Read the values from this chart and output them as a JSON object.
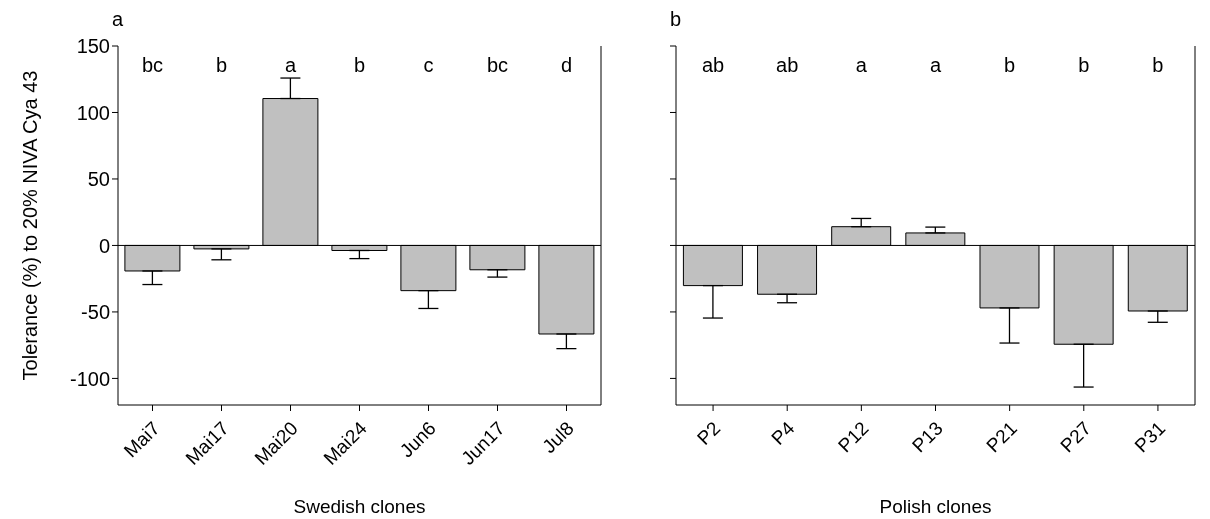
{
  "chart_data": [
    {
      "type": "bar",
      "title": "a",
      "xlabel": "Swedish clones",
      "ylabel": "Tolerance (%) to 20% NIVA Cya 43",
      "categories": [
        "Mai7",
        "Mai17",
        "Mai20",
        "Mai24",
        "Jun6",
        "Jun17",
        "Jul8"
      ],
      "values": [
        -19.2,
        -2.6,
        110.5,
        -3.8,
        -34,
        -18.3,
        -66.6
      ],
      "errors": [
        [
          -29.4,
          -19.2
        ],
        [
          -10.8,
          -2.6
        ],
        [
          110.5,
          125.9
        ],
        [
          -9.9,
          -3.8
        ],
        [
          -47.4,
          -34
        ],
        [
          -23.8,
          -18.3
        ],
        [
          -77.6,
          -66.6
        ]
      ],
      "color": "#c0c0c0",
      "ylim": [
        -120,
        150
      ],
      "yticks": [
        -100,
        -50,
        0,
        50,
        100,
        150
      ],
      "grid": false,
      "ref_lines": [
        {
          "axis": "y",
          "value": 0,
          "color": "#000000"
        }
      ],
      "annotations": [
        "bc",
        "b",
        "a",
        "b",
        "c",
        "bc",
        "d"
      ]
    },
    {
      "type": "bar",
      "title": "b",
      "xlabel": "Polish clones",
      "categories": [
        "P2",
        "P4",
        "P12",
        "P13",
        "P21",
        "P27",
        "P31"
      ],
      "values": [
        -30.2,
        -36.7,
        14.1,
        9.4,
        -47,
        -74.3,
        -49.3
      ],
      "errors": [
        [
          -54.6,
          -30.2
        ],
        [
          -43.1,
          -36.7
        ],
        [
          14.1,
          20.3
        ],
        [
          9.4,
          13.8
        ],
        [
          -73.4,
          -47
        ],
        [
          -106.5,
          -74.3
        ],
        [
          -57.8,
          -49.3
        ]
      ],
      "color": "#c0c0c0",
      "ylim": [
        -120,
        150
      ],
      "yticks": [
        -100,
        -50,
        0,
        50,
        100,
        150
      ],
      "tick_labels": "x",
      "grid": false,
      "ref_lines": [
        {
          "axis": "y",
          "value": 0,
          "color": "#000000"
        }
      ],
      "annotations": [
        "ab",
        "ab",
        "a",
        "a",
        "b",
        "b",
        "b"
      ]
    }
  ]
}
